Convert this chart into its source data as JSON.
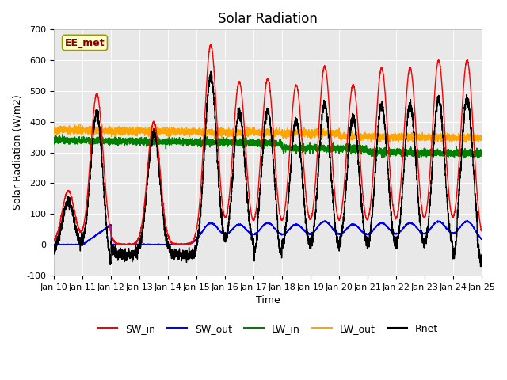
{
  "title": "Solar Radiation",
  "xlabel": "Time",
  "ylabel": "Solar Radiation (W/m2)",
  "ylim": [
    -100,
    700
  ],
  "xlim": [
    0,
    15
  ],
  "annotation": "EE_met",
  "bg_color": "#e8e8e8",
  "legend": [
    {
      "label": "SW_in",
      "color": "red"
    },
    {
      "label": "SW_out",
      "color": "blue"
    },
    {
      "label": "LW_in",
      "color": "green"
    },
    {
      "label": "LW_out",
      "color": "orange"
    },
    {
      "label": "Rnet",
      "color": "black"
    }
  ],
  "xtick_labels": [
    "Jan 10",
    "Jan 11",
    "Jan 12",
    "Jan 13",
    "Jan 14",
    "Jan 15",
    "Jan 16",
    "Jan 17",
    "Jan 18",
    "Jan 19",
    "Jan 20",
    "Jan 21",
    "Jan 22",
    "Jan 23",
    "Jan 24",
    "Jan 25"
  ],
  "ytick_values": [
    -100,
    0,
    100,
    200,
    300,
    400,
    500,
    600,
    700
  ],
  "peaks_swin": [
    0,
    175,
    490,
    0,
    400,
    0,
    650,
    530,
    540,
    520,
    580,
    520,
    575,
    575,
    600,
    600
  ],
  "lwin_base": 340,
  "lwout_base": 370,
  "night_rnet": -35,
  "deep_night_rnet": -70
}
